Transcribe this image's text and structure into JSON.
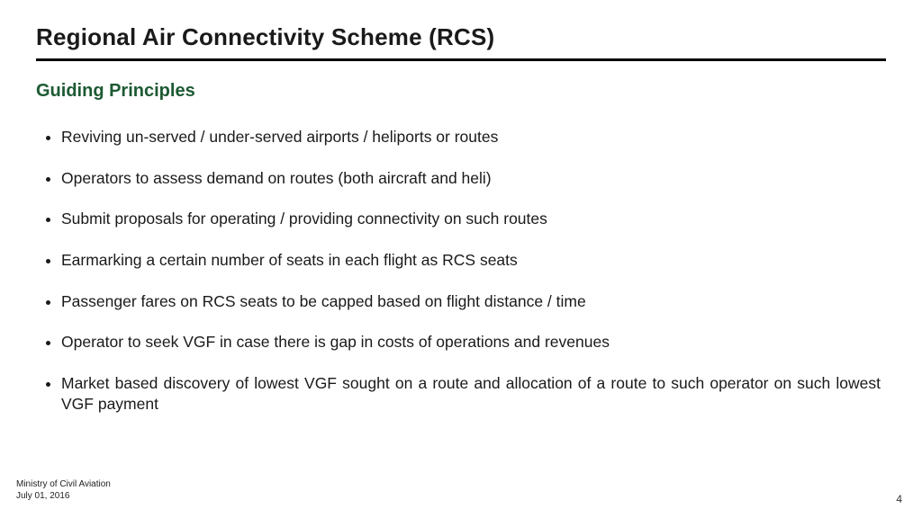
{
  "colors": {
    "title": "#1a1a1a",
    "subtitle": "#1d5a33",
    "rule": "#000000",
    "body": "#1a1a1a",
    "bg": "#ffffff"
  },
  "typography": {
    "title_fontsize": 26,
    "subtitle_fontsize": 20,
    "bullet_fontsize": 17.5,
    "footer_fontsize": 10,
    "pagenum_fontsize": 12,
    "title_weight": 700,
    "subtitle_weight": 700,
    "font_family": "Verdana"
  },
  "title": "Regional Air Connectivity Scheme (RCS)",
  "subtitle": "Guiding Principles",
  "bullets": [
    "Reviving un-served / under-served airports / heliports or routes",
    "Operators to assess demand on routes (both aircraft and heli)",
    "Submit proposals for operating / providing connectivity on such routes",
    "Earmarking a certain number of seats in each flight as RCS seats",
    "Passenger fares on RCS seats to be capped based on flight distance / time",
    "Operator to seek VGF in case there is gap in costs of operations and revenues",
    "Market based discovery of lowest VGF sought on a route and allocation of a route to such operator on such lowest VGF payment"
  ],
  "footer": {
    "org": "Ministry of Civil Aviation",
    "date": "July 01, 2016"
  },
  "page_number": "4"
}
